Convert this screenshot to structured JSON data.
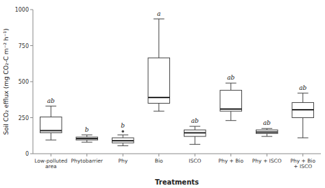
{
  "chart_data": {
    "type": "box",
    "categories": [
      "Low-polluted\narea",
      "Phytobarrier",
      "Phy",
      "Bio",
      "ISCO",
      "Phy + Bio",
      "Phy + ISCO",
      "Phy + Bio\n+ ISCO"
    ],
    "boxes": [
      {
        "q1": 145,
        "median": 160,
        "q3": 255,
        "whislo": 95,
        "whishi": 330,
        "fliers": []
      },
      {
        "q1": 95,
        "median": 105,
        "q3": 115,
        "whislo": 80,
        "whishi": 130,
        "fliers": []
      },
      {
        "q1": 75,
        "median": 90,
        "q3": 110,
        "whislo": 55,
        "whishi": 130,
        "fliers": [
          155
        ]
      },
      {
        "q1": 350,
        "median": 390,
        "q3": 665,
        "whislo": 295,
        "whishi": 935,
        "fliers": []
      },
      {
        "q1": 120,
        "median": 145,
        "q3": 165,
        "whislo": 65,
        "whishi": 190,
        "fliers": []
      },
      {
        "q1": 295,
        "median": 310,
        "q3": 440,
        "whislo": 230,
        "whishi": 490,
        "fliers": []
      },
      {
        "q1": 140,
        "median": 150,
        "q3": 165,
        "whislo": 120,
        "whishi": 175,
        "fliers": []
      },
      {
        "q1": 250,
        "median": 305,
        "q3": 355,
        "whislo": 110,
        "whishi": 420,
        "fliers": []
      }
    ],
    "annotations": [
      "ab",
      "b",
      "b",
      "a",
      "ab",
      "ab",
      "ab",
      "ab"
    ],
    "ylabel": "Soil CO₂ efflux (mg CO₂-C m⁻² h⁻¹)",
    "xlabel": "Treatments",
    "ylim": [
      0,
      1000
    ],
    "yticks": [
      0,
      250,
      500,
      750,
      1000
    ],
    "color": "#444444"
  }
}
